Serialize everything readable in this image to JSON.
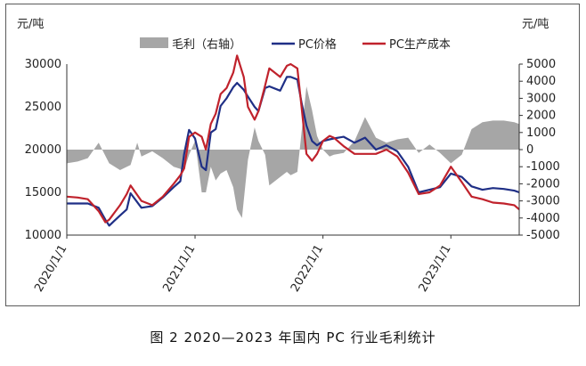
{
  "caption": "图 2  2020—2023 年国内 PC 行业毛利统计",
  "chart_data": {
    "type": "line",
    "left_unit": "元/吨",
    "right_unit": "元/吨",
    "left_axis": {
      "min": 10000,
      "max": 30000,
      "ticks": [
        "30000",
        "25000",
        "20000",
        "15000",
        "10000"
      ]
    },
    "right_axis": {
      "min": -5000,
      "max": 5000,
      "ticks": [
        "5000",
        "4000",
        "3000",
        "2000",
        "1000",
        "0",
        "-1000",
        "-2000",
        "-3000",
        "-4000",
        "-5000"
      ]
    },
    "x_range": [
      "2020-01-01",
      "2023-07-15"
    ],
    "x_ticks": [
      "2020/1/1",
      "2021/1/1",
      "2022/1/1",
      "2023/1/1"
    ],
    "legend": {
      "position": "top",
      "items": [
        {
          "label": "毛利（右轴）",
          "color": "#a6a6a6",
          "kind": "area"
        },
        {
          "label": "PC价格",
          "color": "#1f2f86",
          "kind": "line"
        },
        {
          "label": "PC生产成本",
          "color": "#c0222c",
          "kind": "line"
        }
      ]
    },
    "series": [
      {
        "name": "PC价格",
        "axis": "left",
        "color": "#1f2f86",
        "x": [
          "2020-01-01",
          "2020-02-01",
          "2020-03-01",
          "2020-04-01",
          "2020-04-20",
          "2020-05-01",
          "2020-06-01",
          "2020-06-20",
          "2020-07-01",
          "2020-08-01",
          "2020-09-01",
          "2020-10-01",
          "2020-11-01",
          "2020-11-20",
          "2020-12-01",
          "2020-12-15",
          "2021-01-01",
          "2021-01-20",
          "2021-02-01",
          "2021-02-15",
          "2021-03-01",
          "2021-03-15",
          "2021-04-01",
          "2021-04-20",
          "2021-05-01",
          "2021-05-20",
          "2021-06-01",
          "2021-06-20",
          "2021-07-01",
          "2021-07-20",
          "2021-08-01",
          "2021-09-01",
          "2021-09-20",
          "2021-10-01",
          "2021-10-20",
          "2021-11-01",
          "2021-11-15",
          "2021-12-01",
          "2021-12-15",
          "2022-01-01",
          "2022-01-20",
          "2022-02-01",
          "2022-03-01",
          "2022-04-01",
          "2022-05-01",
          "2022-06-01",
          "2022-07-01",
          "2022-08-01",
          "2022-09-01",
          "2022-10-01",
          "2022-11-01",
          "2022-12-01",
          "2023-01-01",
          "2023-02-01",
          "2023-03-01",
          "2023-04-01",
          "2023-05-01",
          "2023-06-01",
          "2023-07-01",
          "2023-07-15"
        ],
        "y": [
          13700,
          13700,
          13700,
          13200,
          11800,
          11100,
          12300,
          13000,
          14900,
          13200,
          13400,
          14400,
          15600,
          16300,
          19500,
          22300,
          21300,
          18000,
          17600,
          22000,
          22400,
          25100,
          26000,
          27300,
          27800,
          27000,
          26200,
          25000,
          24500,
          27200,
          27400,
          26900,
          28500,
          28500,
          28200,
          25500,
          22800,
          21000,
          20500,
          21000,
          21200,
          21300,
          21500,
          20800,
          21400,
          20000,
          20500,
          19800,
          18000,
          15000,
          15300,
          15600,
          17200,
          16800,
          15700,
          15300,
          15500,
          15400,
          15200,
          15000
        ]
      },
      {
        "name": "PC生产成本",
        "axis": "left",
        "color": "#c0222c",
        "x": [
          "2020-01-01",
          "2020-02-01",
          "2020-03-01",
          "2020-04-01",
          "2020-04-20",
          "2020-05-01",
          "2020-06-01",
          "2020-06-20",
          "2020-07-01",
          "2020-08-01",
          "2020-09-01",
          "2020-10-01",
          "2020-11-01",
          "2020-11-20",
          "2020-12-01",
          "2020-12-15",
          "2021-01-01",
          "2021-01-20",
          "2021-02-01",
          "2021-02-15",
          "2021-03-01",
          "2021-03-15",
          "2021-04-01",
          "2021-04-20",
          "2021-05-01",
          "2021-05-20",
          "2021-06-01",
          "2021-06-20",
          "2021-07-01",
          "2021-07-20",
          "2021-08-01",
          "2021-09-01",
          "2021-09-20",
          "2021-10-01",
          "2021-10-20",
          "2021-11-01",
          "2021-11-15",
          "2021-12-01",
          "2021-12-15",
          "2022-01-01",
          "2022-01-20",
          "2022-02-01",
          "2022-03-01",
          "2022-04-01",
          "2022-05-01",
          "2022-06-01",
          "2022-07-01",
          "2022-08-01",
          "2022-09-01",
          "2022-10-01",
          "2022-11-01",
          "2022-12-01",
          "2023-01-01",
          "2023-02-01",
          "2023-03-01",
          "2023-04-01",
          "2023-05-01",
          "2023-06-01",
          "2023-07-01",
          "2023-07-15"
        ],
        "y": [
          14500,
          14400,
          14200,
          12800,
          11500,
          11800,
          13500,
          14800,
          15800,
          14000,
          13500,
          14500,
          16000,
          17000,
          17800,
          21500,
          22000,
          21500,
          20000,
          23000,
          24200,
          26500,
          27200,
          29000,
          31000,
          28500,
          25000,
          23500,
          24500,
          27500,
          29500,
          28500,
          29800,
          30000,
          29500,
          25000,
          19500,
          18700,
          19500,
          21000,
          21600,
          21400,
          20400,
          19500,
          19500,
          19500,
          20000,
          19200,
          17300,
          14800,
          15000,
          15800,
          18000,
          16200,
          14500,
          14200,
          13800,
          13700,
          13500,
          13000
        ]
      },
      {
        "name": "毛利（右轴）",
        "axis": "right",
        "color": "#a6a6a6",
        "x": [
          "2020-01-01",
          "2020-02-01",
          "2020-03-01",
          "2020-04-01",
          "2020-05-01",
          "2020-06-01",
          "2020-07-01",
          "2020-07-20",
          "2020-08-01",
          "2020-09-01",
          "2020-10-01",
          "2020-11-01",
          "2020-12-01",
          "2020-12-15",
          "2021-01-01",
          "2021-01-20",
          "2021-02-01",
          "2021-02-15",
          "2021-03-01",
          "2021-03-15",
          "2021-04-01",
          "2021-04-20",
          "2021-05-01",
          "2021-05-15",
          "2021-06-01",
          "2021-06-20",
          "2021-07-01",
          "2021-07-20",
          "2021-08-01",
          "2021-09-01",
          "2021-09-20",
          "2021-10-01",
          "2021-10-20",
          "2021-11-01",
          "2021-11-15",
          "2021-12-01",
          "2021-12-15",
          "2022-01-01",
          "2022-01-20",
          "2022-02-01",
          "2022-03-01",
          "2022-04-01",
          "2022-05-01",
          "2022-06-01",
          "2022-07-01",
          "2022-08-01",
          "2022-09-01",
          "2022-10-01",
          "2022-11-01",
          "2022-12-01",
          "2023-01-01",
          "2023-02-01",
          "2023-03-01",
          "2023-04-01",
          "2023-05-01",
          "2023-06-01",
          "2023-07-01",
          "2023-07-15"
        ],
        "y": [
          -800,
          -700,
          -500,
          400,
          -800,
          -1200,
          -900,
          400,
          -400,
          -100,
          -500,
          -1000,
          -1200,
          -300,
          500,
          -2500,
          -2500,
          -1000,
          -1800,
          -1400,
          -1200,
          -2200,
          -3500,
          -4000,
          -600,
          1300,
          500,
          -300,
          -2100,
          -1600,
          -1300,
          -1500,
          -1300,
          1000,
          3700,
          2300,
          800,
          0,
          -400,
          -300,
          -200,
          500,
          1900,
          700,
          400,
          600,
          700,
          -200,
          300,
          -200,
          -800,
          -300,
          1200,
          1600,
          1700,
          1700,
          1600,
          1500
        ]
      }
    ]
  }
}
